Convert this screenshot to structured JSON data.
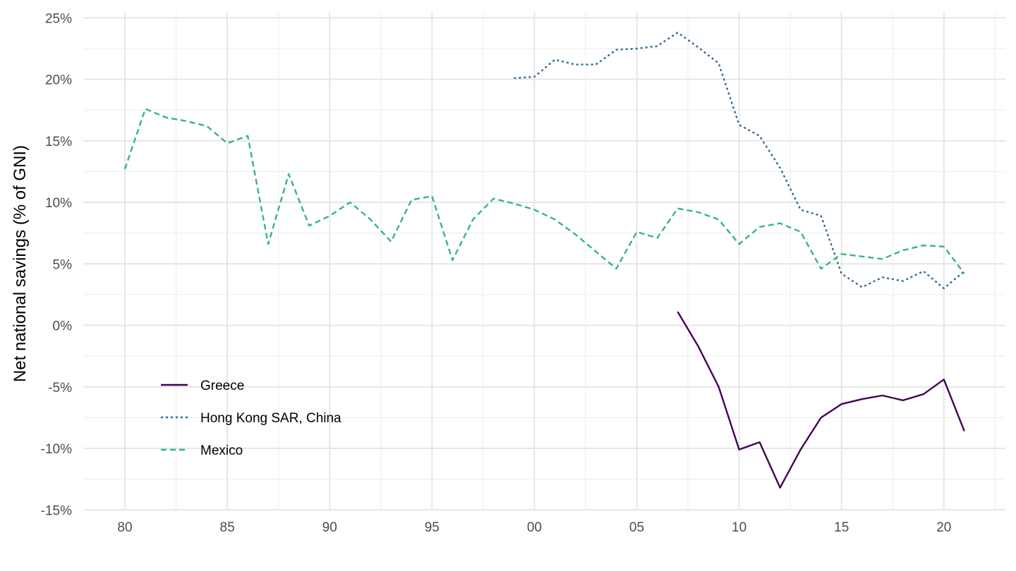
{
  "chart_data": {
    "type": "line",
    "title": "",
    "xlabel": "",
    "ylabel": "Net national savings (% of GNI)",
    "xlim": [
      1980,
      2021
    ],
    "ylim": [
      -15,
      25
    ],
    "x_ticks": [
      {
        "value": 1980,
        "label": "80"
      },
      {
        "value": 1985,
        "label": "85"
      },
      {
        "value": 1990,
        "label": "90"
      },
      {
        "value": 1995,
        "label": "95"
      },
      {
        "value": 2000,
        "label": "00"
      },
      {
        "value": 2005,
        "label": "05"
      },
      {
        "value": 2010,
        "label": "10"
      },
      {
        "value": 2015,
        "label": "15"
      },
      {
        "value": 2020,
        "label": "20"
      }
    ],
    "y_ticks": [
      {
        "value": 25,
        "label": "25%"
      },
      {
        "value": 20,
        "label": "20%"
      },
      {
        "value": 15,
        "label": "15%"
      },
      {
        "value": 10,
        "label": "10%"
      },
      {
        "value": 5,
        "label": "5%"
      },
      {
        "value": 0,
        "label": "0%"
      },
      {
        "value": -5,
        "label": "-5%"
      },
      {
        "value": -10,
        "label": "-10%"
      },
      {
        "value": -15,
        "label": "-15%"
      }
    ],
    "grid": true,
    "legend_position": "bottom-left inside",
    "series": [
      {
        "name": "Greece",
        "color": "#440154",
        "dash": "solid",
        "x": [
          2007,
          2008,
          2009,
          2010,
          2011,
          2012,
          2013,
          2014,
          2015,
          2016,
          2017,
          2018,
          2019,
          2020,
          2021
        ],
        "values": [
          1.1,
          -1.7,
          -5.0,
          -10.1,
          -9.5,
          -13.2,
          -10.1,
          -7.5,
          -6.4,
          -6.0,
          -5.7,
          -6.1,
          -5.6,
          -4.4,
          -8.6
        ]
      },
      {
        "name": "Hong Kong SAR, China",
        "color": "#31688e",
        "dash": "dotted",
        "x": [
          1999,
          2000,
          2001,
          2002,
          2003,
          2004,
          2005,
          2006,
          2007,
          2008,
          2009,
          2010,
          2011,
          2012,
          2013,
          2014,
          2015,
          2016,
          2017,
          2018,
          2019,
          2020,
          2021
        ],
        "values": [
          20.1,
          20.2,
          21.6,
          21.2,
          21.2,
          22.4,
          22.5,
          22.7,
          23.8,
          22.6,
          21.3,
          16.3,
          15.4,
          12.8,
          9.4,
          8.9,
          4.2,
          3.1,
          3.9,
          3.6,
          4.4,
          3.0,
          4.4
        ]
      },
      {
        "name": "Mexico",
        "color": "#35b779",
        "dash": "dashed",
        "x": [
          1980,
          1981,
          1982,
          1983,
          1984,
          1985,
          1986,
          1987,
          1988,
          1989,
          1990,
          1991,
          1992,
          1993,
          1994,
          1995,
          1996,
          1997,
          1998,
          1999,
          2000,
          2001,
          2002,
          2003,
          2004,
          2005,
          2006,
          2007,
          2008,
          2009,
          2010,
          2011,
          2012,
          2013,
          2014,
          2015,
          2016,
          2017,
          2018,
          2019,
          2020,
          2021
        ],
        "values": [
          12.7,
          17.6,
          16.9,
          16.6,
          16.2,
          14.8,
          15.4,
          6.6,
          12.3,
          8.1,
          8.9,
          10.0,
          8.6,
          6.8,
          10.2,
          10.5,
          5.3,
          8.6,
          10.3,
          9.9,
          9.4,
          8.6,
          7.4,
          6.0,
          4.6,
          7.6,
          7.1,
          9.5,
          9.2,
          8.6,
          6.6,
          8.0,
          8.3,
          7.6,
          4.6,
          5.8,
          5.6,
          5.4,
          6.1,
          6.5,
          6.4,
          4.2
        ]
      }
    ]
  }
}
